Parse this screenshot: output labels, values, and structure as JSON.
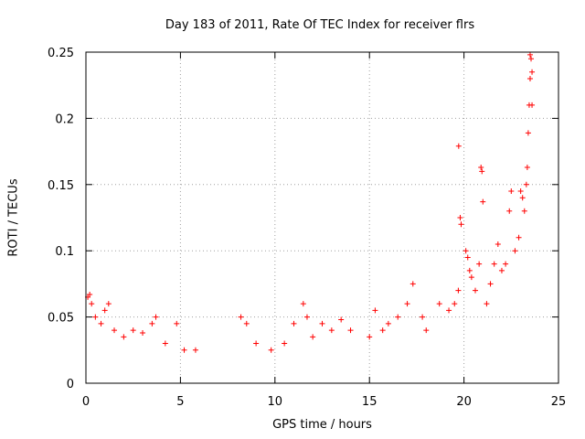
{
  "chart_data": {
    "type": "scatter",
    "title": "Day 183 of 2011, Rate Of TEC Index for receiver flrs",
    "xlabel": "GPS time / hours",
    "ylabel": "ROTI / TECUs",
    "xlim": [
      0,
      25
    ],
    "ylim": [
      0,
      0.25
    ],
    "xticks": [
      0,
      5,
      10,
      15,
      20,
      25
    ],
    "xtick_labels": [
      "0",
      "5",
      "10",
      "15",
      "20",
      "25"
    ],
    "yticks": [
      0,
      0.05,
      0.1,
      0.15,
      0.2,
      0.25
    ],
    "ytick_labels": [
      "0",
      "0.05",
      "0.1",
      "0.15",
      "0.2",
      "0.25"
    ],
    "grid": true,
    "marker": "+",
    "color": "#ff0000",
    "series": [
      {
        "name": "flrs",
        "points": [
          [
            0.1,
            0.065
          ],
          [
            0.2,
            0.067
          ],
          [
            0.3,
            0.06
          ],
          [
            0.5,
            0.05
          ],
          [
            0.8,
            0.045
          ],
          [
            1.0,
            0.055
          ],
          [
            1.2,
            0.06
          ],
          [
            1.5,
            0.04
          ],
          [
            2.0,
            0.035
          ],
          [
            2.5,
            0.04
          ],
          [
            3.0,
            0.038
          ],
          [
            3.5,
            0.045
          ],
          [
            3.7,
            0.05
          ],
          [
            4.2,
            0.03
          ],
          [
            4.8,
            0.045
          ],
          [
            5.2,
            0.025
          ],
          [
            5.8,
            0.025
          ],
          [
            8.2,
            0.05
          ],
          [
            8.5,
            0.045
          ],
          [
            9.0,
            0.03
          ],
          [
            9.8,
            0.025
          ],
          [
            10.5,
            0.03
          ],
          [
            11.0,
            0.045
          ],
          [
            11.5,
            0.06
          ],
          [
            11.7,
            0.05
          ],
          [
            12.0,
            0.035
          ],
          [
            12.5,
            0.045
          ],
          [
            13.0,
            0.04
          ],
          [
            13.5,
            0.048
          ],
          [
            14.0,
            0.04
          ],
          [
            15.0,
            0.035
          ],
          [
            15.3,
            0.055
          ],
          [
            15.7,
            0.04
          ],
          [
            16.0,
            0.045
          ],
          [
            16.5,
            0.05
          ],
          [
            17.0,
            0.06
          ],
          [
            17.3,
            0.075
          ],
          [
            17.8,
            0.05
          ],
          [
            18.0,
            0.04
          ],
          [
            18.7,
            0.06
          ],
          [
            19.2,
            0.055
          ],
          [
            19.5,
            0.06
          ],
          [
            19.7,
            0.07
          ],
          [
            19.72,
            0.179
          ],
          [
            19.8,
            0.125
          ],
          [
            19.85,
            0.12
          ],
          [
            20.1,
            0.1
          ],
          [
            20.2,
            0.095
          ],
          [
            20.3,
            0.085
          ],
          [
            20.4,
            0.08
          ],
          [
            20.6,
            0.07
          ],
          [
            20.8,
            0.09
          ],
          [
            20.9,
            0.163
          ],
          [
            20.95,
            0.16
          ],
          [
            21.0,
            0.137
          ],
          [
            21.2,
            0.06
          ],
          [
            21.4,
            0.075
          ],
          [
            21.6,
            0.09
          ],
          [
            21.8,
            0.105
          ],
          [
            22.0,
            0.085
          ],
          [
            22.2,
            0.09
          ],
          [
            22.4,
            0.13
          ],
          [
            22.5,
            0.145
          ],
          [
            22.7,
            0.1
          ],
          [
            22.9,
            0.11
          ],
          [
            23.0,
            0.145
          ],
          [
            23.1,
            0.14
          ],
          [
            23.2,
            0.13
          ],
          [
            23.3,
            0.15
          ],
          [
            23.35,
            0.163
          ],
          [
            23.4,
            0.189
          ],
          [
            23.45,
            0.21
          ],
          [
            23.5,
            0.23
          ],
          [
            23.5,
            0.248
          ],
          [
            23.55,
            0.245
          ],
          [
            23.6,
            0.235
          ],
          [
            23.6,
            0.21
          ]
        ]
      }
    ]
  }
}
